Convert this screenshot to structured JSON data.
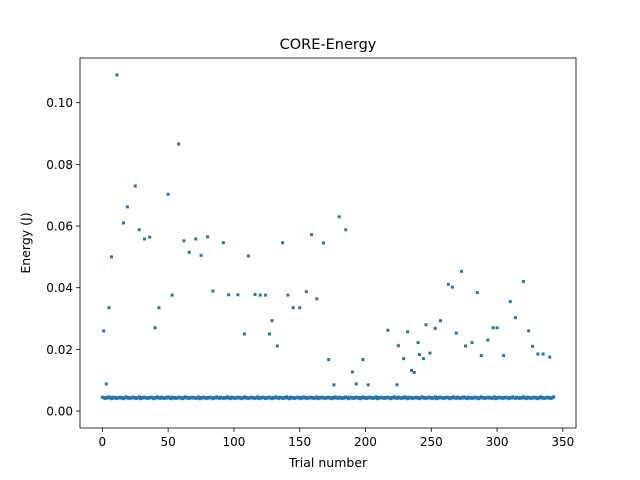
{
  "chart_data": {
    "type": "scatter",
    "title": "CORE-Energy",
    "xlabel": "Trial number",
    "ylabel": "Energy (J)",
    "xlim": [
      -17,
      360
    ],
    "ylim": [
      -0.0055,
      0.1145
    ],
    "xticks": [
      0,
      50,
      100,
      150,
      200,
      250,
      300,
      350
    ],
    "yticks": [
      0.0,
      0.02,
      0.04,
      0.06,
      0.08,
      0.1
    ],
    "ytick_labels": [
      "0.00",
      "0.02",
      "0.04",
      "0.06",
      "0.08",
      "0.10"
    ],
    "grid": false,
    "marker_color": "#1f77b4",
    "baseline": {
      "x_start": 0,
      "x_end": 343,
      "y_values": [
        0.0045,
        0.0043,
        0.0041,
        0.0044,
        0.0042,
        0.0046,
        0.0043,
        0.004,
        0.0045,
        0.0042,
        0.0044,
        0.0041,
        0.0043,
        0.0045,
        0.0042,
        0.0044,
        0.004,
        0.0043,
        0.0046,
        0.0042,
        0.0044,
        0.0041,
        0.0043,
        0.0045,
        0.0042,
        0.0044,
        0.0041,
        0.0043,
        0.0046,
        0.004,
        0.0044,
        0.0042,
        0.0045,
        0.0043,
        0.0041,
        0.0044,
        0.0042,
        0.0045,
        0.0043,
        0.004,
        0.0044,
        0.0042,
        0.0046,
        0.0043,
        0.0041
      ]
    },
    "points": [
      {
        "x": 1,
        "y": 0.026
      },
      {
        "x": 3,
        "y": 0.0088
      },
      {
        "x": 5,
        "y": 0.0335
      },
      {
        "x": 7,
        "y": 0.05
      },
      {
        "x": 11,
        "y": 0.109
      },
      {
        "x": 16,
        "y": 0.061
      },
      {
        "x": 19,
        "y": 0.0662
      },
      {
        "x": 25,
        "y": 0.073
      },
      {
        "x": 28,
        "y": 0.0588
      },
      {
        "x": 32,
        "y": 0.0558
      },
      {
        "x": 36,
        "y": 0.0564
      },
      {
        "x": 40,
        "y": 0.027
      },
      {
        "x": 43,
        "y": 0.0335
      },
      {
        "x": 50,
        "y": 0.0703
      },
      {
        "x": 53,
        "y": 0.0376
      },
      {
        "x": 58,
        "y": 0.0866
      },
      {
        "x": 62,
        "y": 0.0552
      },
      {
        "x": 66,
        "y": 0.0515
      },
      {
        "x": 71,
        "y": 0.0558
      },
      {
        "x": 75,
        "y": 0.0505
      },
      {
        "x": 80,
        "y": 0.0565
      },
      {
        "x": 84,
        "y": 0.0389
      },
      {
        "x": 92,
        "y": 0.0546
      },
      {
        "x": 96,
        "y": 0.0377
      },
      {
        "x": 103,
        "y": 0.0377
      },
      {
        "x": 108,
        "y": 0.025
      },
      {
        "x": 111,
        "y": 0.0503
      },
      {
        "x": 116,
        "y": 0.0378
      },
      {
        "x": 120,
        "y": 0.0376
      },
      {
        "x": 124,
        "y": 0.0376
      },
      {
        "x": 127,
        "y": 0.025
      },
      {
        "x": 129,
        "y": 0.0293
      },
      {
        "x": 133,
        "y": 0.0211
      },
      {
        "x": 137,
        "y": 0.0546
      },
      {
        "x": 141,
        "y": 0.0376
      },
      {
        "x": 145,
        "y": 0.0335
      },
      {
        "x": 150,
        "y": 0.0335
      },
      {
        "x": 155,
        "y": 0.0387
      },
      {
        "x": 159,
        "y": 0.0572
      },
      {
        "x": 163,
        "y": 0.0364
      },
      {
        "x": 168,
        "y": 0.0545
      },
      {
        "x": 172,
        "y": 0.0167
      },
      {
        "x": 176,
        "y": 0.0085
      },
      {
        "x": 180,
        "y": 0.063
      },
      {
        "x": 185,
        "y": 0.0588
      },
      {
        "x": 190,
        "y": 0.0127
      },
      {
        "x": 193,
        "y": 0.0088
      },
      {
        "x": 198,
        "y": 0.0167
      },
      {
        "x": 202,
        "y": 0.0085
      },
      {
        "x": 217,
        "y": 0.0262
      },
      {
        "x": 224,
        "y": 0.0085
      },
      {
        "x": 225,
        "y": 0.0212
      },
      {
        "x": 229,
        "y": 0.017
      },
      {
        "x": 232,
        "y": 0.0257
      },
      {
        "x": 235,
        "y": 0.0132
      },
      {
        "x": 237,
        "y": 0.0125
      },
      {
        "x": 240,
        "y": 0.0222
      },
      {
        "x": 241,
        "y": 0.0183
      },
      {
        "x": 244,
        "y": 0.017
      },
      {
        "x": 246,
        "y": 0.028
      },
      {
        "x": 249,
        "y": 0.0188
      },
      {
        "x": 253,
        "y": 0.0268
      },
      {
        "x": 257,
        "y": 0.0293
      },
      {
        "x": 263,
        "y": 0.0411
      },
      {
        "x": 266,
        "y": 0.0402
      },
      {
        "x": 269,
        "y": 0.0253
      },
      {
        "x": 273,
        "y": 0.0453
      },
      {
        "x": 276,
        "y": 0.0211
      },
      {
        "x": 281,
        "y": 0.0222
      },
      {
        "x": 285,
        "y": 0.0384
      },
      {
        "x": 288,
        "y": 0.018
      },
      {
        "x": 293,
        "y": 0.023
      },
      {
        "x": 297,
        "y": 0.027
      },
      {
        "x": 300,
        "y": 0.027
      },
      {
        "x": 305,
        "y": 0.018
      },
      {
        "x": 310,
        "y": 0.0355
      },
      {
        "x": 314,
        "y": 0.0303
      },
      {
        "x": 320,
        "y": 0.042
      },
      {
        "x": 324,
        "y": 0.026
      },
      {
        "x": 327,
        "y": 0.021
      },
      {
        "x": 331,
        "y": 0.0185
      },
      {
        "x": 335,
        "y": 0.0185
      },
      {
        "x": 340,
        "y": 0.0175
      }
    ]
  }
}
